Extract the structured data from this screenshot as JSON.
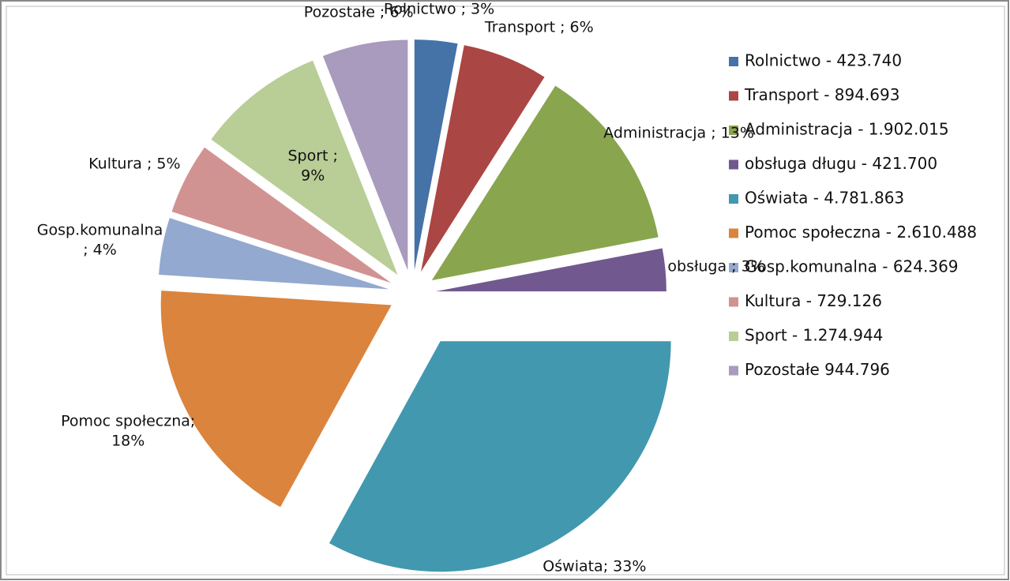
{
  "chart_data": {
    "type": "pie",
    "categories": [
      "Rolnictwo - 423.740",
      "Transport -  894.693",
      "Administracja - 1.902.015",
      "obsługa długu - 421.700",
      "Oświata - 4.781.863",
      "Pomoc społeczna - 2.610.488",
      "Gosp.komunalna - 624.369",
      "Kultura - 729.126",
      "Sport - 1.274.944",
      "Pozostałe 944.796"
    ],
    "values": [
      3,
      6,
      13,
      3,
      33,
      18,
      4,
      5,
      9,
      6
    ],
    "value_labels": [
      "Rolnictwo ; 3%",
      "Transport ; 6%",
      "Administracja ; 13%",
      "obsługa ; 3%",
      "Oświata; 33%",
      "Pomoc społeczna;\n18%",
      "Gosp.komunalna\n; 4%",
      "Kultura ; 5%",
      "Sport ;\n9%",
      "Pozostałe ; 6%"
    ],
    "colors": [
      "#4572a7",
      "#aa4643",
      "#89a54e",
      "#71588f",
      "#4198af",
      "#db843d",
      "#93a9cf",
      "#d19392",
      "#b9cd96",
      "#a99bbd"
    ],
    "legend": "right"
  }
}
